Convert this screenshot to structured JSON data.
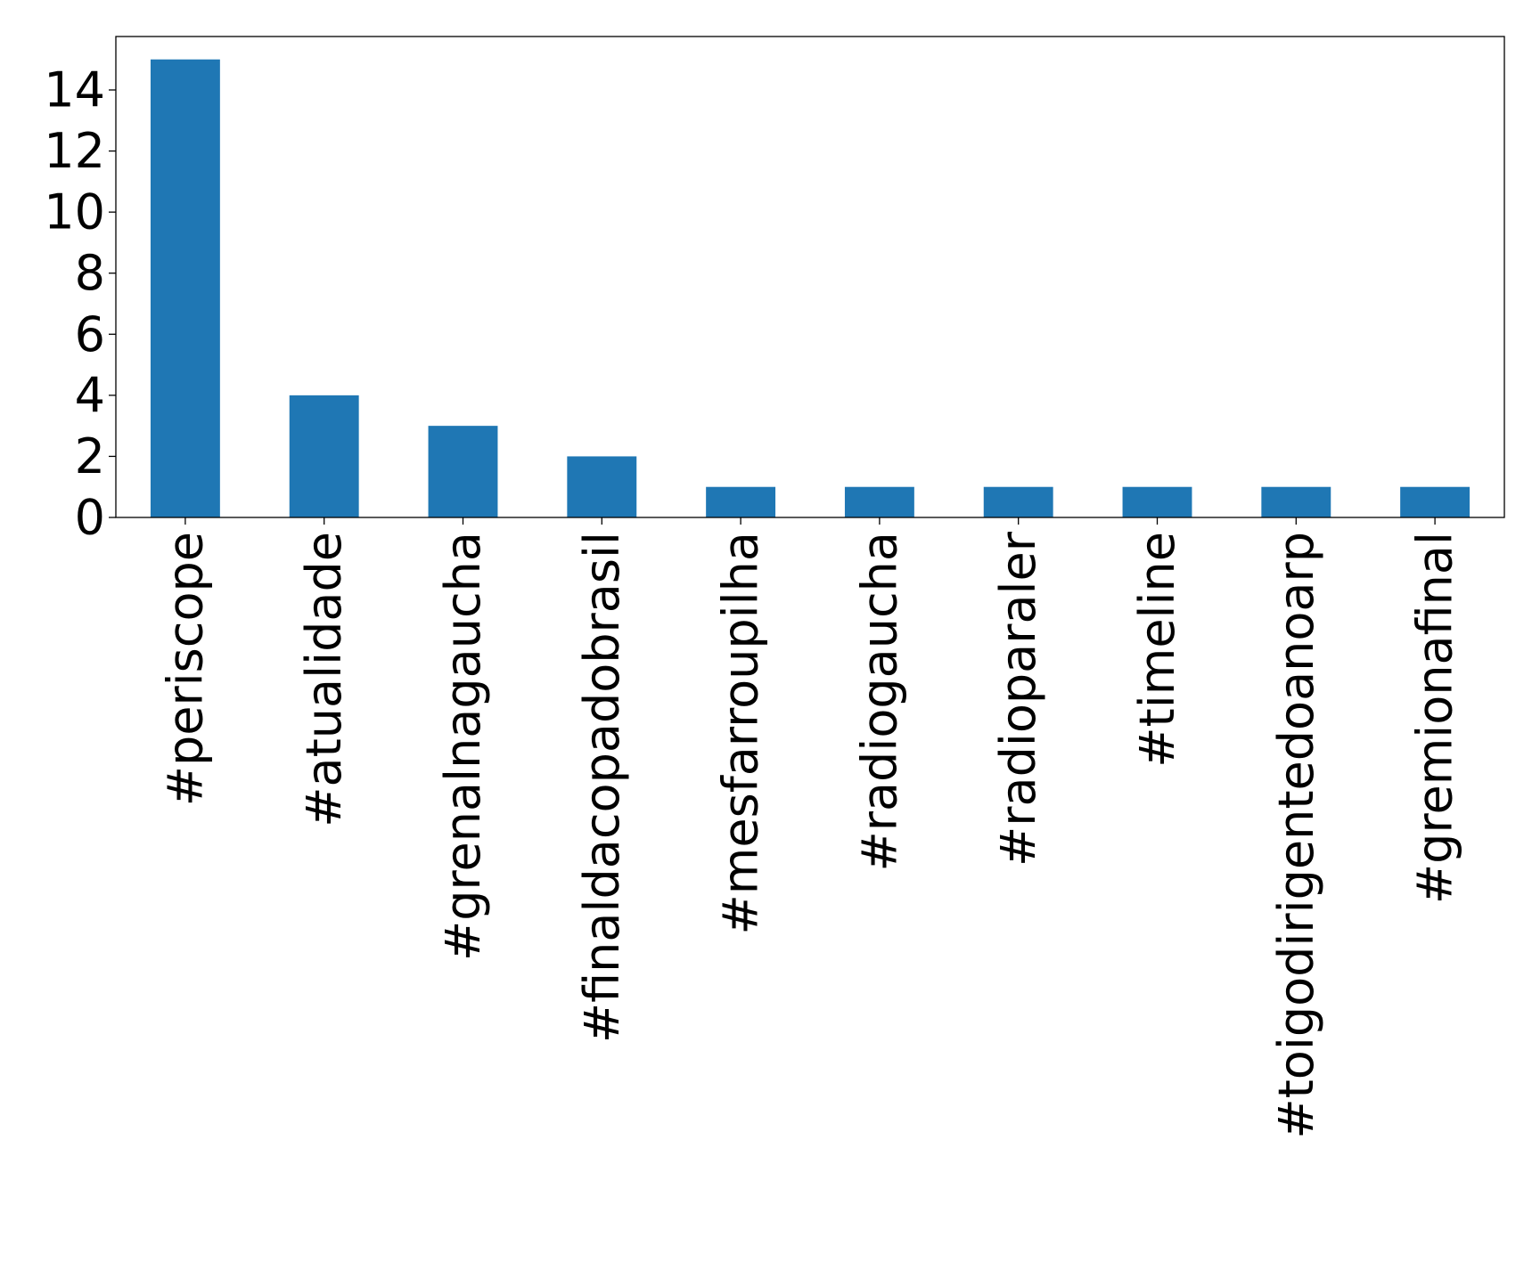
{
  "chart_data": {
    "type": "bar",
    "title": "",
    "xlabel": "",
    "ylabel": "",
    "categories": [
      "#periscope",
      "#atualidade",
      "#grenalnagaucha",
      "#finaldacopadobrasil",
      "#mesfarroupilha",
      "#radiogaucha",
      "#radioparaler",
      "#timeline",
      "#toigodirigentedoanoarp",
      "#gremionafinal"
    ],
    "values": [
      15,
      4,
      3,
      2,
      1,
      1,
      1,
      1,
      1,
      1
    ],
    "ylim": [
      0,
      15.75
    ],
    "yticks": [
      0,
      2,
      4,
      6,
      8,
      10,
      12,
      14
    ],
    "grid": false,
    "legend": "none",
    "colors": {
      "bar": "#1f77b4",
      "axis": "#000000",
      "text": "#000000",
      "background": "#ffffff"
    }
  }
}
